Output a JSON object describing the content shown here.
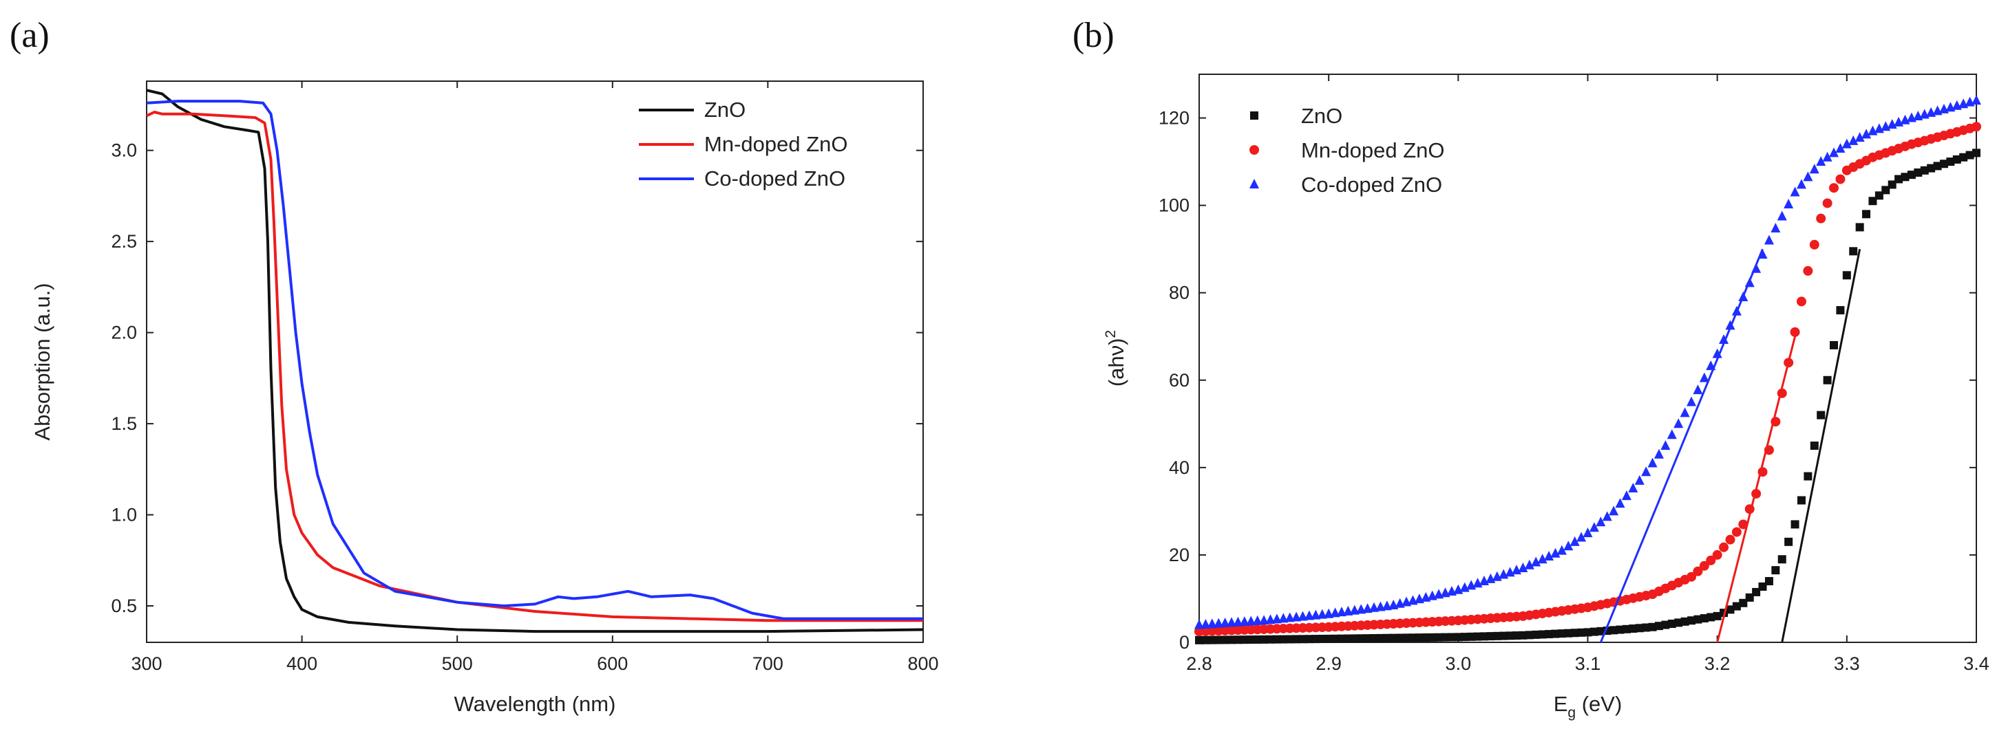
{
  "panels": [
    {
      "letter": "(a)"
    },
    {
      "letter": "(b)"
    }
  ],
  "chart_data": [
    {
      "type": "line",
      "panel": "(a)",
      "title": "",
      "xlabel": "Wavelength (nm)",
      "ylabel": "Absorption (a.u.)",
      "xlim": [
        300,
        800
      ],
      "ylim": [
        0.3,
        3.38
      ],
      "xticks": [
        300,
        400,
        500,
        600,
        700,
        800
      ],
      "yticks": [
        0.5,
        1.0,
        1.5,
        2.0,
        2.5,
        3.0
      ],
      "xtick_labels": [
        "300",
        "400",
        "500",
        "600",
        "700",
        "800"
      ],
      "ytick_labels": [
        "0.5",
        "1.0",
        "1.5",
        "2.0",
        "2.5",
        "3.0"
      ],
      "legend_position": "top-right",
      "series": [
        {
          "name": "ZnO",
          "color": "#111111",
          "x": [
            300,
            310,
            320,
            335,
            350,
            365,
            372,
            376,
            378,
            380,
            383,
            386,
            390,
            395,
            400,
            410,
            430,
            460,
            500,
            550,
            600,
            700,
            800
          ],
          "y": [
            3.33,
            3.31,
            3.24,
            3.17,
            3.13,
            3.11,
            3.1,
            2.9,
            2.5,
            1.8,
            1.15,
            0.85,
            0.65,
            0.55,
            0.48,
            0.44,
            0.41,
            0.39,
            0.37,
            0.36,
            0.36,
            0.36,
            0.37
          ]
        },
        {
          "name": "Mn-doped ZnO",
          "color": "#ee1c1c",
          "x": [
            300,
            305,
            310,
            330,
            350,
            370,
            376,
            380,
            382,
            384,
            387,
            390,
            395,
            400,
            410,
            420,
            450,
            500,
            550,
            600,
            650,
            700,
            800
          ],
          "y": [
            3.19,
            3.21,
            3.2,
            3.2,
            3.19,
            3.18,
            3.15,
            2.95,
            2.6,
            2.2,
            1.6,
            1.25,
            1.0,
            0.9,
            0.78,
            0.71,
            0.61,
            0.52,
            0.47,
            0.44,
            0.43,
            0.42,
            0.42
          ]
        },
        {
          "name": "Co-doped ZnO",
          "color": "#1f2fff",
          "x": [
            300,
            320,
            340,
            360,
            375,
            380,
            384,
            388,
            392,
            396,
            400,
            405,
            410,
            420,
            440,
            460,
            500,
            530,
            550,
            565,
            575,
            590,
            610,
            625,
            650,
            665,
            690,
            710,
            800
          ],
          "y": [
            3.26,
            3.27,
            3.27,
            3.27,
            3.26,
            3.2,
            3.0,
            2.7,
            2.35,
            2.0,
            1.72,
            1.45,
            1.22,
            0.95,
            0.68,
            0.58,
            0.52,
            0.5,
            0.51,
            0.55,
            0.54,
            0.55,
            0.58,
            0.55,
            0.56,
            0.54,
            0.46,
            0.43,
            0.43
          ]
        }
      ]
    },
    {
      "type": "scatter",
      "panel": "(b)",
      "title": "",
      "xlabel": "E",
      "xlabel_sub": "g",
      "xlabel_unit": " (eV)",
      "ylabel": "(ahν)",
      "ylabel_sup": "2",
      "xlim": [
        2.8,
        3.4
      ],
      "ylim": [
        0,
        130
      ],
      "xticks": [
        2.8,
        2.9,
        3.0,
        3.1,
        3.2,
        3.3,
        3.4
      ],
      "yticks": [
        0,
        20,
        40,
        60,
        80,
        100,
        120
      ],
      "xtick_labels": [
        "2.8",
        "2.9",
        "3.0",
        "3.1",
        "3.2",
        "3.3",
        "3.4"
      ],
      "ytick_labels": [
        "0",
        "20",
        "40",
        "60",
        "80",
        "100",
        "120"
      ],
      "legend_position": "top-left",
      "series": [
        {
          "name": "ZnO",
          "color": "#111111",
          "marker": "square",
          "x": [
            2.8,
            2.9,
            3.0,
            3.05,
            3.1,
            3.15,
            3.2,
            3.22,
            3.24,
            3.25,
            3.26,
            3.27,
            3.28,
            3.29,
            3.3,
            3.31,
            3.32,
            3.34,
            3.37,
            3.4
          ],
          "y": [
            0.5,
            0.8,
            1.2,
            1.6,
            2.3,
            3.5,
            6.0,
            9.0,
            14.0,
            19.0,
            27.0,
            38.0,
            52.0,
            68.0,
            84.0,
            95.0,
            101.0,
            106.0,
            109.0,
            112.0
          ],
          "fit_line": {
            "x": [
              3.25,
              3.31
            ],
            "y": [
              0,
              90
            ]
          }
        },
        {
          "name": "Mn-doped ZnO",
          "color": "#ee1c1c",
          "marker": "circle",
          "x": [
            2.8,
            2.9,
            3.0,
            3.05,
            3.1,
            3.15,
            3.18,
            3.2,
            3.22,
            3.23,
            3.24,
            3.25,
            3.26,
            3.27,
            3.28,
            3.29,
            3.3,
            3.32,
            3.35,
            3.4
          ],
          "y": [
            2.5,
            3.5,
            5.0,
            6.0,
            8.0,
            11.0,
            15.0,
            20.0,
            27.0,
            34.0,
            44.0,
            57.0,
            71.0,
            85.0,
            97.0,
            104.0,
            108.0,
            111.0,
            114.0,
            118.0
          ],
          "fit_line": {
            "x": [
              3.2,
              3.26
            ],
            "y": [
              0,
              70
            ]
          }
        },
        {
          "name": "Co-doped ZnO",
          "color": "#1f2fff",
          "marker": "triangle",
          "x": [
            2.8,
            2.85,
            2.9,
            2.95,
            3.0,
            3.05,
            3.08,
            3.1,
            3.12,
            3.14,
            3.16,
            3.18,
            3.2,
            3.22,
            3.24,
            3.26,
            3.28,
            3.3,
            3.32,
            3.35,
            3.4
          ],
          "y": [
            4.0,
            5.0,
            6.5,
            8.5,
            12.0,
            17.0,
            21.0,
            25.0,
            30.0,
            37.0,
            45.0,
            55.0,
            66.0,
            79.0,
            92.0,
            103.0,
            110.0,
            114.0,
            117.0,
            120.0,
            124.0
          ],
          "fit_line": {
            "x": [
              3.11,
              3.235
            ],
            "y": [
              0,
              90
            ]
          }
        }
      ]
    }
  ]
}
